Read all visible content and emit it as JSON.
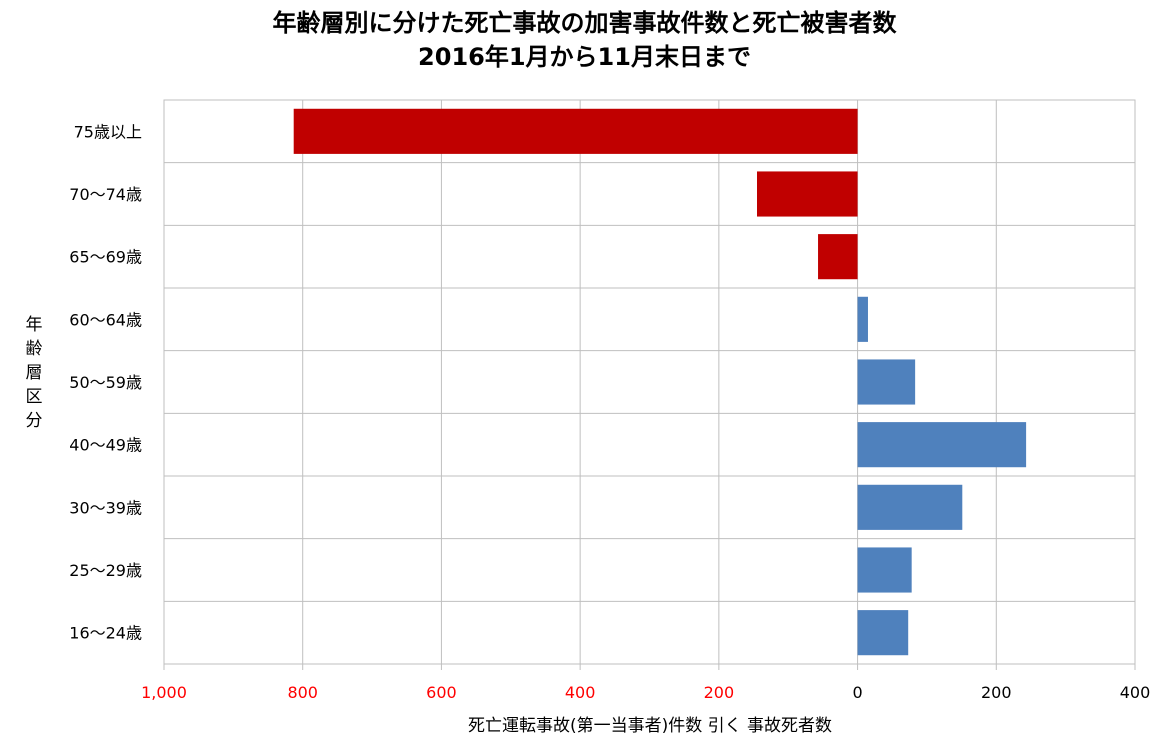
{
  "chart_data": {
    "type": "bar",
    "orientation": "horizontal",
    "title_lines": [
      "年齢層別に分けた死亡事故の加害事故件数と死亡被害者数",
      "2016年1月から11月末日まで"
    ],
    "xlabel": "死亡運転事故(第一当事者)件数 引く 事故死者数",
    "ylabel": "年齢層区分",
    "categories": [
      "75歳以上",
      "70～74歳",
      "65～69歳",
      "60～64歳",
      "50～59歳",
      "40～49歳",
      "30～39歳",
      "25～29歳",
      "16～24歳"
    ],
    "values": [
      -813,
      -145,
      -57,
      15,
      83,
      243,
      151,
      78,
      73
    ],
    "xlim": [
      -1000,
      400
    ],
    "x_ticks": [
      -1000,
      -800,
      -600,
      -400,
      -200,
      0,
      200,
      400
    ],
    "x_tick_labels": [
      "1,000",
      "800",
      "600",
      "400",
      "200",
      "0",
      "200",
      "400"
    ],
    "grid": true,
    "colors": {
      "negative_bar": "#C00000",
      "positive_bar": "#4F81BD",
      "negative_tick_label": "#FF0000",
      "positive_tick_label": "#000000",
      "grid": "#BFBFBF"
    }
  }
}
